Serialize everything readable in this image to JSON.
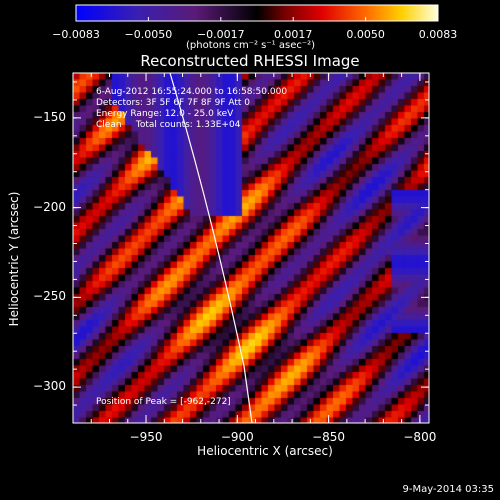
{
  "chart_data": {
    "type": "heatmap",
    "title": "Reconstructed RHESSI Image",
    "xlabel": "Heliocentric X (arcsec)",
    "ylabel": "Heliocentric Y (arcsec)",
    "xlim": [
      -990,
      -795
    ],
    "ylim": [
      -320,
      -125
    ],
    "xticks": [
      -950,
      -900,
      -850,
      -800
    ],
    "xtick_labels": [
      "−950",
      "−900",
      "−850",
      "−800"
    ],
    "yticks": [
      -150,
      -200,
      -250,
      -300
    ],
    "ytick_labels": [
      "−150",
      "−200",
      "−250",
      "−300"
    ],
    "colorbar": {
      "min": -0.0083,
      "max": 0.0083,
      "tick_labels": [
        "−0.0083",
        "−0.0050",
        "−0.0017",
        "0.0017",
        "0.0050",
        "0.0083"
      ],
      "units_label": "(photons cm⁻² s⁻¹ asec⁻²)"
    },
    "annotations": {
      "time_range": "6-Aug-2012 16:55:24.000 to 16:58:50.000",
      "detectors": "Detectors: 3F 5F 6F 7F 8F 9F Att 0",
      "energy_range": "Energy Range: 12.0 - 25.0 keV",
      "clean_counts": "Clean     Total counts: 1.33E+04",
      "peak_position": "Position of Peak = [-962,-272]"
    },
    "grid": false,
    "colormap": "red-temperature"
  },
  "footer_timestamp": "9-May-2014 03:35"
}
